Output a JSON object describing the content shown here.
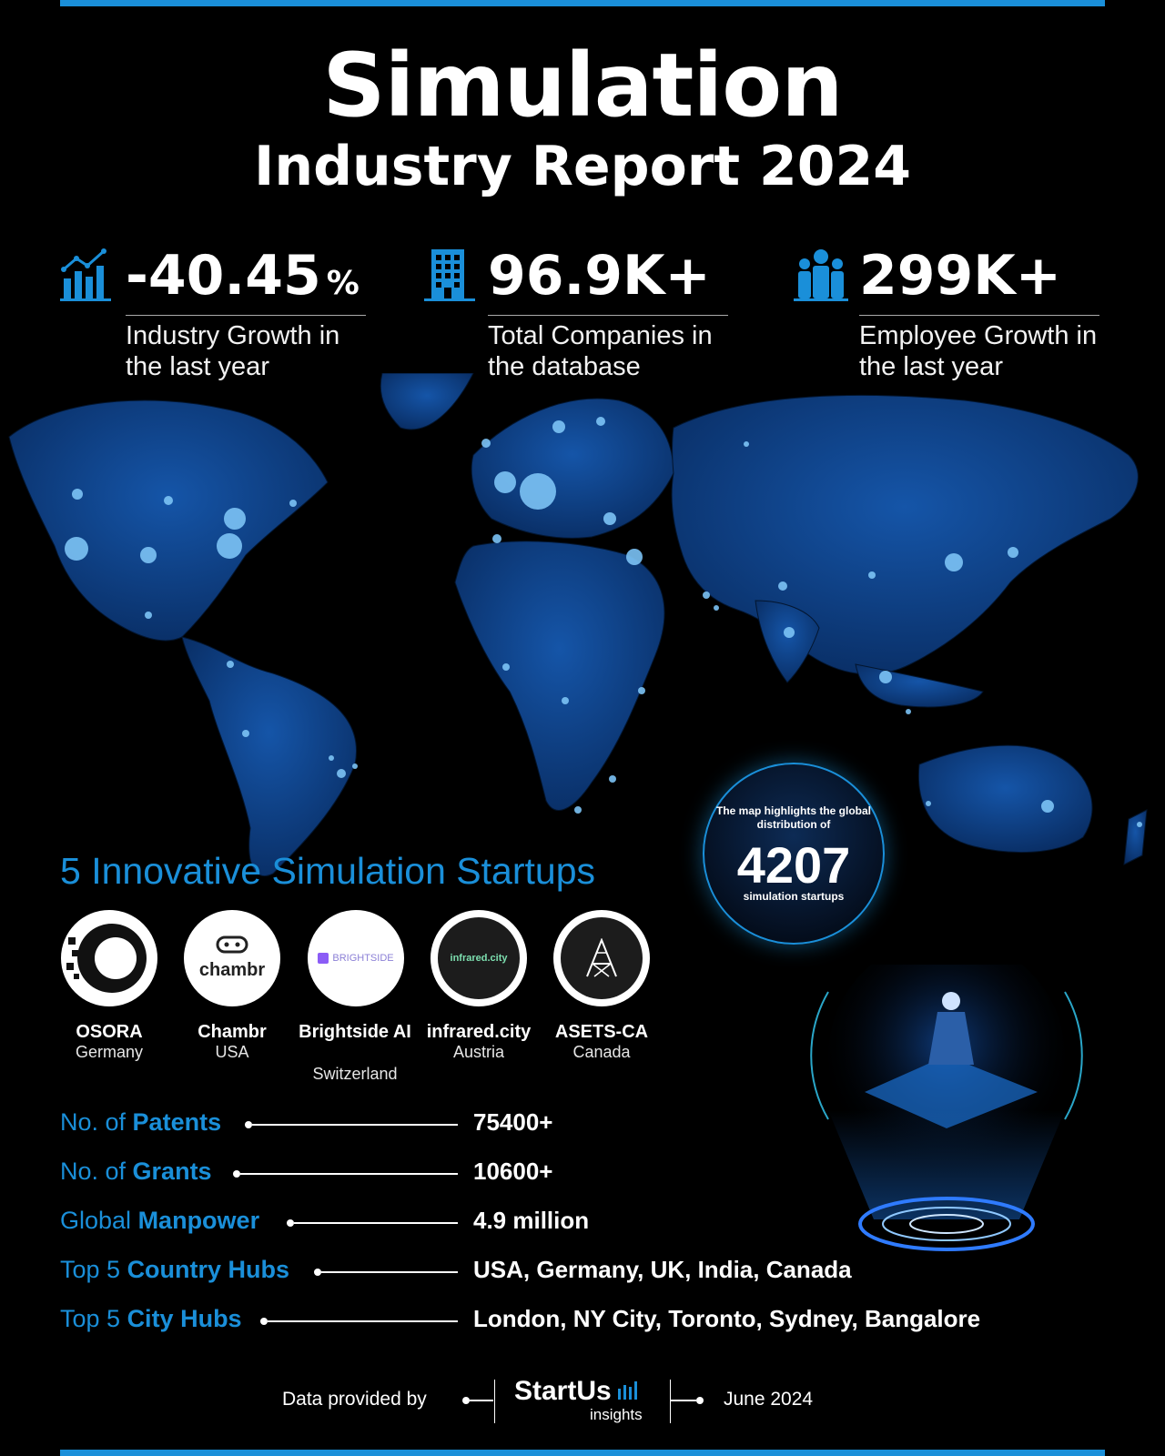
{
  "header": {
    "title": "Simulation",
    "subtitle": "Industry Report 2024"
  },
  "stats": [
    {
      "value": "-40.45",
      "unit": "%",
      "label": "Industry Growth in the last year",
      "icon": "growth-chart-icon"
    },
    {
      "value": "96.9K+",
      "label": "Total Companies in the database",
      "icon": "building-icon"
    },
    {
      "value": "299K+",
      "label": "Employee Growth in the last year",
      "icon": "people-icon"
    }
  ],
  "map_badge": {
    "text": "The map highlights the global distribution of",
    "count": "4207",
    "suffix": "simulation startups"
  },
  "startups": {
    "title": "5 Innovative Simulation Startups",
    "items": [
      {
        "name": "OSORA",
        "country": "Germany"
      },
      {
        "name": "Chambr",
        "country": "USA",
        "logo_text": "chambr"
      },
      {
        "name": "Brightside AI",
        "country": "Switzerland",
        "logo_text": "BRIGHTSIDE"
      },
      {
        "name": "infrared.city",
        "country": "Austria",
        "logo_text": "infrared.city"
      },
      {
        "name": "ASETS-CA",
        "country": "Canada"
      }
    ]
  },
  "metrics": [
    {
      "prefix": "No. of ",
      "bold": "Patents",
      "value": "75400+"
    },
    {
      "prefix": "No. of ",
      "bold": "Grants",
      "value": "10600+"
    },
    {
      "prefix": "Global ",
      "bold": "Manpower",
      "value": "4.9 million"
    },
    {
      "prefix": "Top 5 ",
      "bold": "Country Hubs",
      "value": "USA, Germany, UK, India, Canada"
    },
    {
      "prefix": "Top 5 ",
      "bold": "City Hubs",
      "value": "London, NY City, Toronto, Sydney, Bangalore"
    }
  ],
  "footer": {
    "provided_by": "Data provided by",
    "brand": "StartUs",
    "brand_sub": "insights",
    "date": "June 2024"
  },
  "colors": {
    "accent": "#1a8fd9",
    "map": "#0b3a7a",
    "background": "#000000"
  }
}
